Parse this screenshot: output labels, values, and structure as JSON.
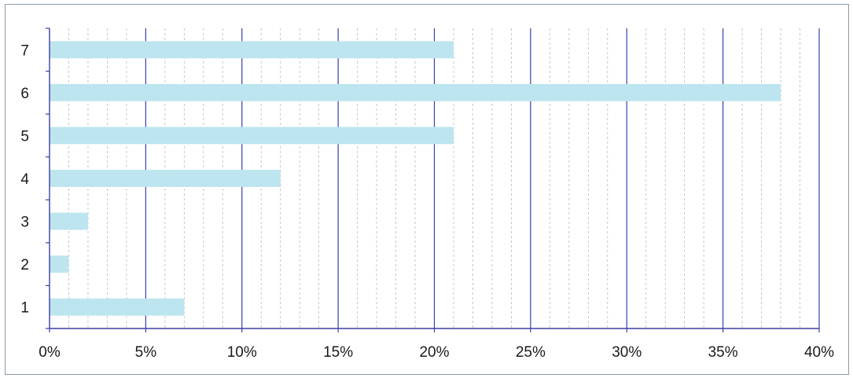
{
  "chart_data": {
    "type": "bar",
    "orientation": "horizontal",
    "categories": [
      "1",
      "2",
      "3",
      "4",
      "5",
      "6",
      "7"
    ],
    "values": [
      7,
      1,
      2,
      12,
      21,
      38,
      21
    ],
    "value_unit": "%",
    "title": "",
    "xlabel": "",
    "ylabel": "",
    "xlim": [
      0,
      40
    ],
    "x_ticks": [
      "0%",
      "5%",
      "10%",
      "15%",
      "20%",
      "25%",
      "30%",
      "35%",
      "40%"
    ],
    "grid": true,
    "legend": "none",
    "colors": {
      "bar": "#bde5f0",
      "major_grid": "#3b3fa6",
      "minor_grid": "#b9b9b9",
      "axis": "#3b3fa6",
      "frame": "#8f9aa6",
      "text": "#1a1a1a"
    }
  }
}
